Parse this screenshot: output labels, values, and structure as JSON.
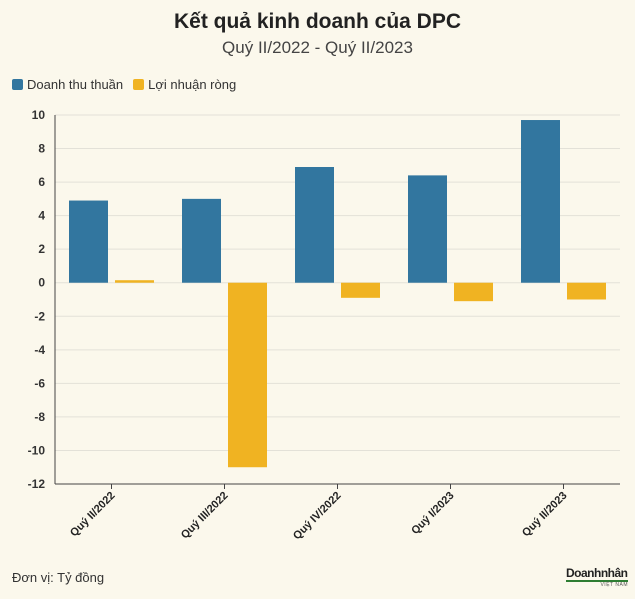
{
  "header": {
    "title": "Kết quả kinh doanh của DPC",
    "subtitle": "Quý II/2022 - Quý II/2023"
  },
  "colors": {
    "revenue": "#32769f",
    "profit": "#f0b322",
    "grid": "#e3e1d8",
    "axis": "#444444"
  },
  "chart_data": {
    "type": "bar",
    "categories": [
      "Quý II/2022",
      "Quý III/2022",
      "Quý IV/2022",
      "Quý I/2023",
      "Quý II/2023"
    ],
    "series": [
      {
        "name": "Doanh thu thuần",
        "values": [
          4.9,
          5.0,
          6.9,
          6.4,
          9.7
        ]
      },
      {
        "name": "Lợi nhuận ròng",
        "values": [
          0.15,
          -11.0,
          -0.9,
          -1.1,
          -1.0
        ]
      }
    ],
    "ylim": [
      -12,
      10
    ],
    "yticks": [
      10,
      8,
      6,
      4,
      2,
      0,
      -2,
      -4,
      -6,
      -8,
      -10,
      -12
    ],
    "grid": true,
    "legend": "top-left"
  },
  "footer": {
    "unit_note": "Đơn vị: Tỷ đồng",
    "logo_text": "Doanhnhân",
    "logo_sub": "VIỆT NAM"
  }
}
